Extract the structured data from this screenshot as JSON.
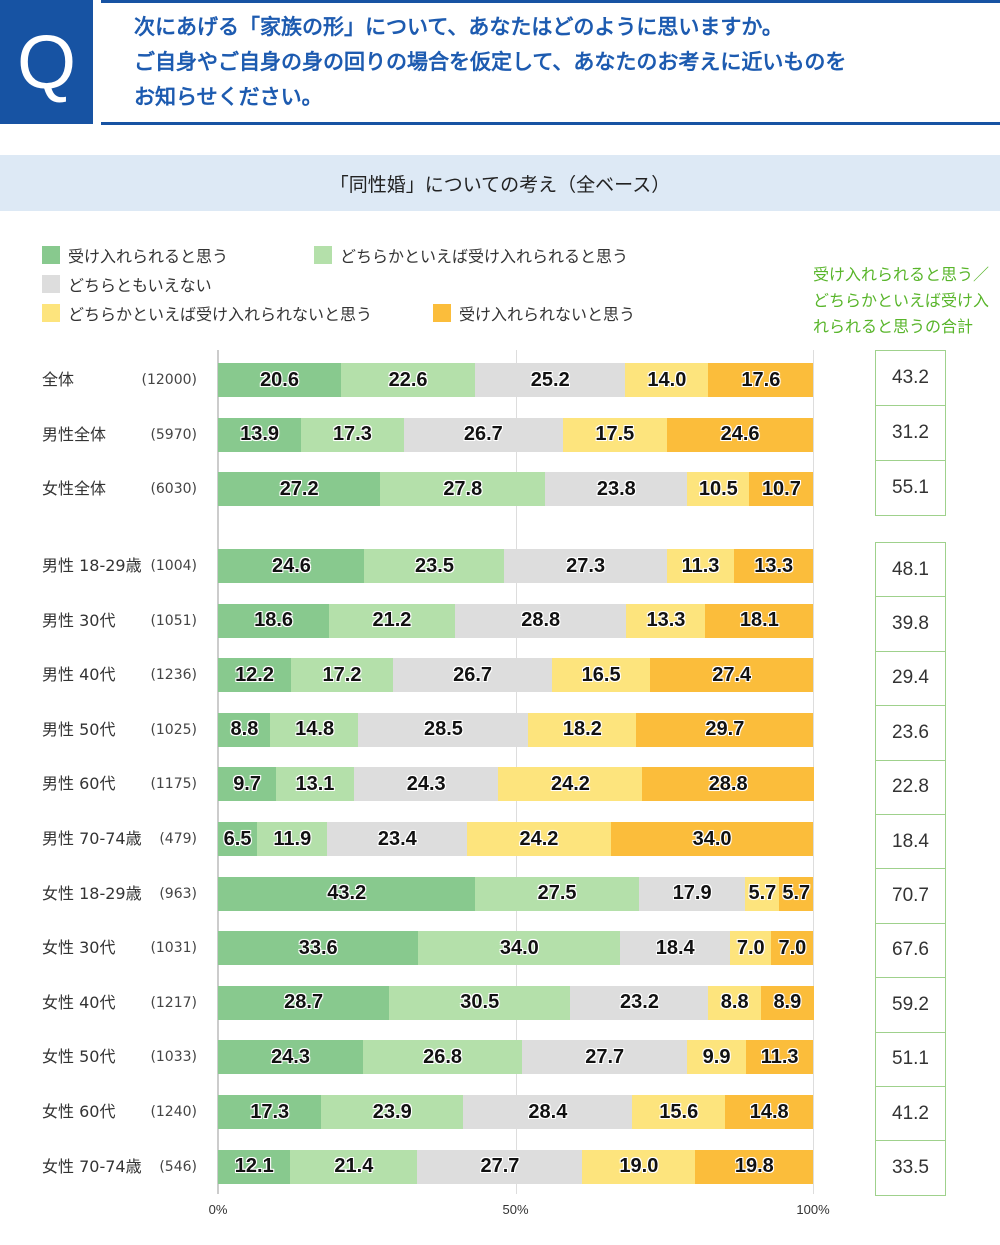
{
  "question": {
    "badge": "Q",
    "lines": [
      "次にあげる「家族の形」について、あなたはどのように思いますか。",
      "ご自身やご自身の身の回りの場合を仮定して、あなたのお考えに近いものを",
      "お知らせください。"
    ]
  },
  "chart_data": {
    "type": "bar",
    "orientation": "horizontal-stacked-100",
    "title": "「同性婚」についての考え（全ベース）",
    "xlim": [
      0,
      100
    ],
    "xticks": [
      "0%",
      "50%",
      "100%"
    ],
    "legend_placement": "top",
    "series": [
      {
        "name": "受け入れられると思う",
        "color": "#88c98e"
      },
      {
        "name": "どちらかといえば受け入れられると思う",
        "color": "#b4e0aa"
      },
      {
        "name": "どちらともいえない",
        "color": "#dddddd"
      },
      {
        "name": "どちらかといえば受け入れられないと思う",
        "color": "#fde47d"
      },
      {
        "name": "受け入れられないと思う",
        "color": "#fbbd3b"
      }
    ],
    "total_header": "受け入れられると思う／どちらかといえば受け入れられると思うの合計",
    "total_color": "#58b52a",
    "rows": [
      {
        "label": "全体",
        "n": "(12000)",
        "values": [
          20.6,
          22.6,
          25.2,
          14.0,
          17.6
        ],
        "total": "43.2"
      },
      {
        "label": "男性全体",
        "n": "(5970)",
        "values": [
          13.9,
          17.3,
          26.7,
          17.5,
          24.6
        ],
        "total": "31.2"
      },
      {
        "label": "女性全体",
        "n": "(6030)",
        "values": [
          27.2,
          27.8,
          23.8,
          10.5,
          10.7
        ],
        "total": "55.1"
      },
      {
        "label": "男性 18-29歳",
        "n": "(1004)",
        "values": [
          24.6,
          23.5,
          27.3,
          11.3,
          13.3
        ],
        "total": "48.1"
      },
      {
        "label": "男性 30代",
        "n": "(1051)",
        "values": [
          18.6,
          21.2,
          28.8,
          13.3,
          18.1
        ],
        "total": "39.8"
      },
      {
        "label": "男性 40代",
        "n": "(1236)",
        "values": [
          12.2,
          17.2,
          26.7,
          16.5,
          27.4
        ],
        "total": "29.4"
      },
      {
        "label": "男性 50代",
        "n": "(1025)",
        "values": [
          8.8,
          14.8,
          28.5,
          18.2,
          29.7
        ],
        "total": "23.6"
      },
      {
        "label": "男性 60代",
        "n": "(1175)",
        "values": [
          9.7,
          13.1,
          24.3,
          24.2,
          28.8
        ],
        "total": "22.8"
      },
      {
        "label": "男性 70-74歳",
        "n": "(479)",
        "values": [
          6.5,
          11.9,
          23.4,
          24.2,
          34.0
        ],
        "total": "18.4"
      },
      {
        "label": "女性 18-29歳",
        "n": "(963)",
        "values": [
          43.2,
          27.5,
          17.9,
          5.7,
          5.7
        ],
        "total": "70.7"
      },
      {
        "label": "女性 30代",
        "n": "(1031)",
        "values": [
          33.6,
          34.0,
          18.4,
          7.0,
          7.0
        ],
        "total": "67.6"
      },
      {
        "label": "女性 40代",
        "n": "(1217)",
        "values": [
          28.7,
          30.5,
          23.2,
          8.8,
          8.9
        ],
        "total": "59.2"
      },
      {
        "label": "女性 50代",
        "n": "(1033)",
        "values": [
          24.3,
          26.8,
          27.7,
          9.9,
          11.3
        ],
        "total": "51.1"
      },
      {
        "label": "女性 60代",
        "n": "(1240)",
        "values": [
          17.3,
          23.9,
          28.4,
          15.6,
          14.8
        ],
        "total": "41.2"
      },
      {
        "label": "女性 70-74歳",
        "n": "(546)",
        "values": [
          12.1,
          21.4,
          27.7,
          19.0,
          19.8
        ],
        "total": "33.5"
      }
    ]
  }
}
